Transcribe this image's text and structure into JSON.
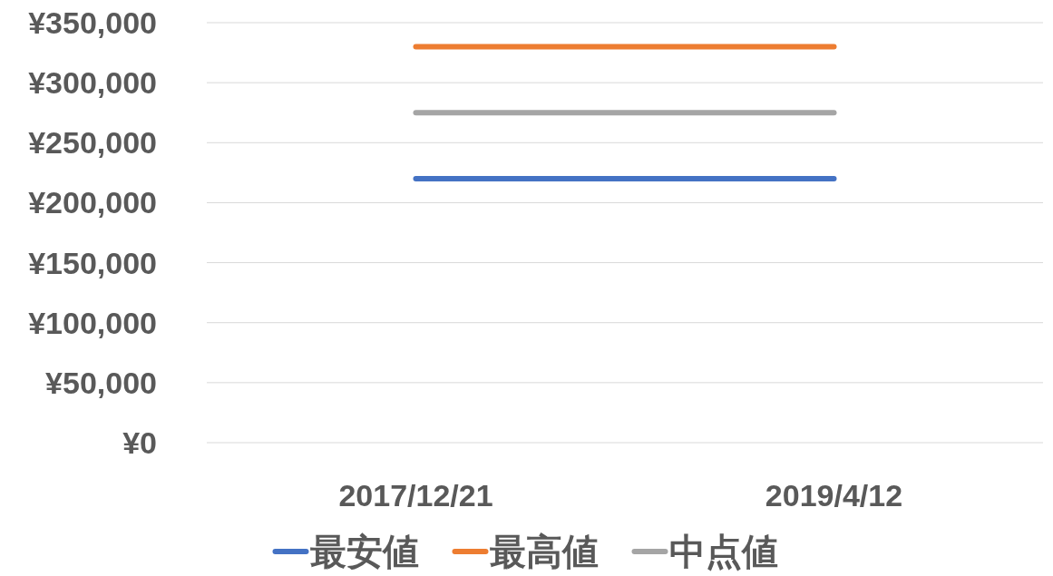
{
  "chart_data": {
    "type": "line",
    "categories": [
      "2017/12/21",
      "2019/4/12"
    ],
    "series": [
      {
        "name": "最安値",
        "color": "#4472c4",
        "values": [
          220000,
          220000
        ]
      },
      {
        "name": "最高値",
        "color": "#ed7d31",
        "values": [
          330000,
          330000
        ]
      },
      {
        "name": "中点値",
        "color": "#a5a5a5",
        "values": [
          275000,
          275000
        ]
      }
    ],
    "ylim": [
      0,
      350000
    ],
    "yticks": [
      {
        "value": 0,
        "label": "¥0"
      },
      {
        "value": 50000,
        "label": "¥50,000"
      },
      {
        "value": 100000,
        "label": "¥100,000"
      },
      {
        "value": 150000,
        "label": "¥150,000"
      },
      {
        "value": 200000,
        "label": "¥200,000"
      },
      {
        "value": 250000,
        "label": "¥250,000"
      },
      {
        "value": 300000,
        "label": "¥300,000"
      },
      {
        "value": 350000,
        "label": "¥350,000"
      }
    ],
    "grid": "y",
    "legend": "bottom",
    "marker": "none",
    "line_style": "solid"
  }
}
